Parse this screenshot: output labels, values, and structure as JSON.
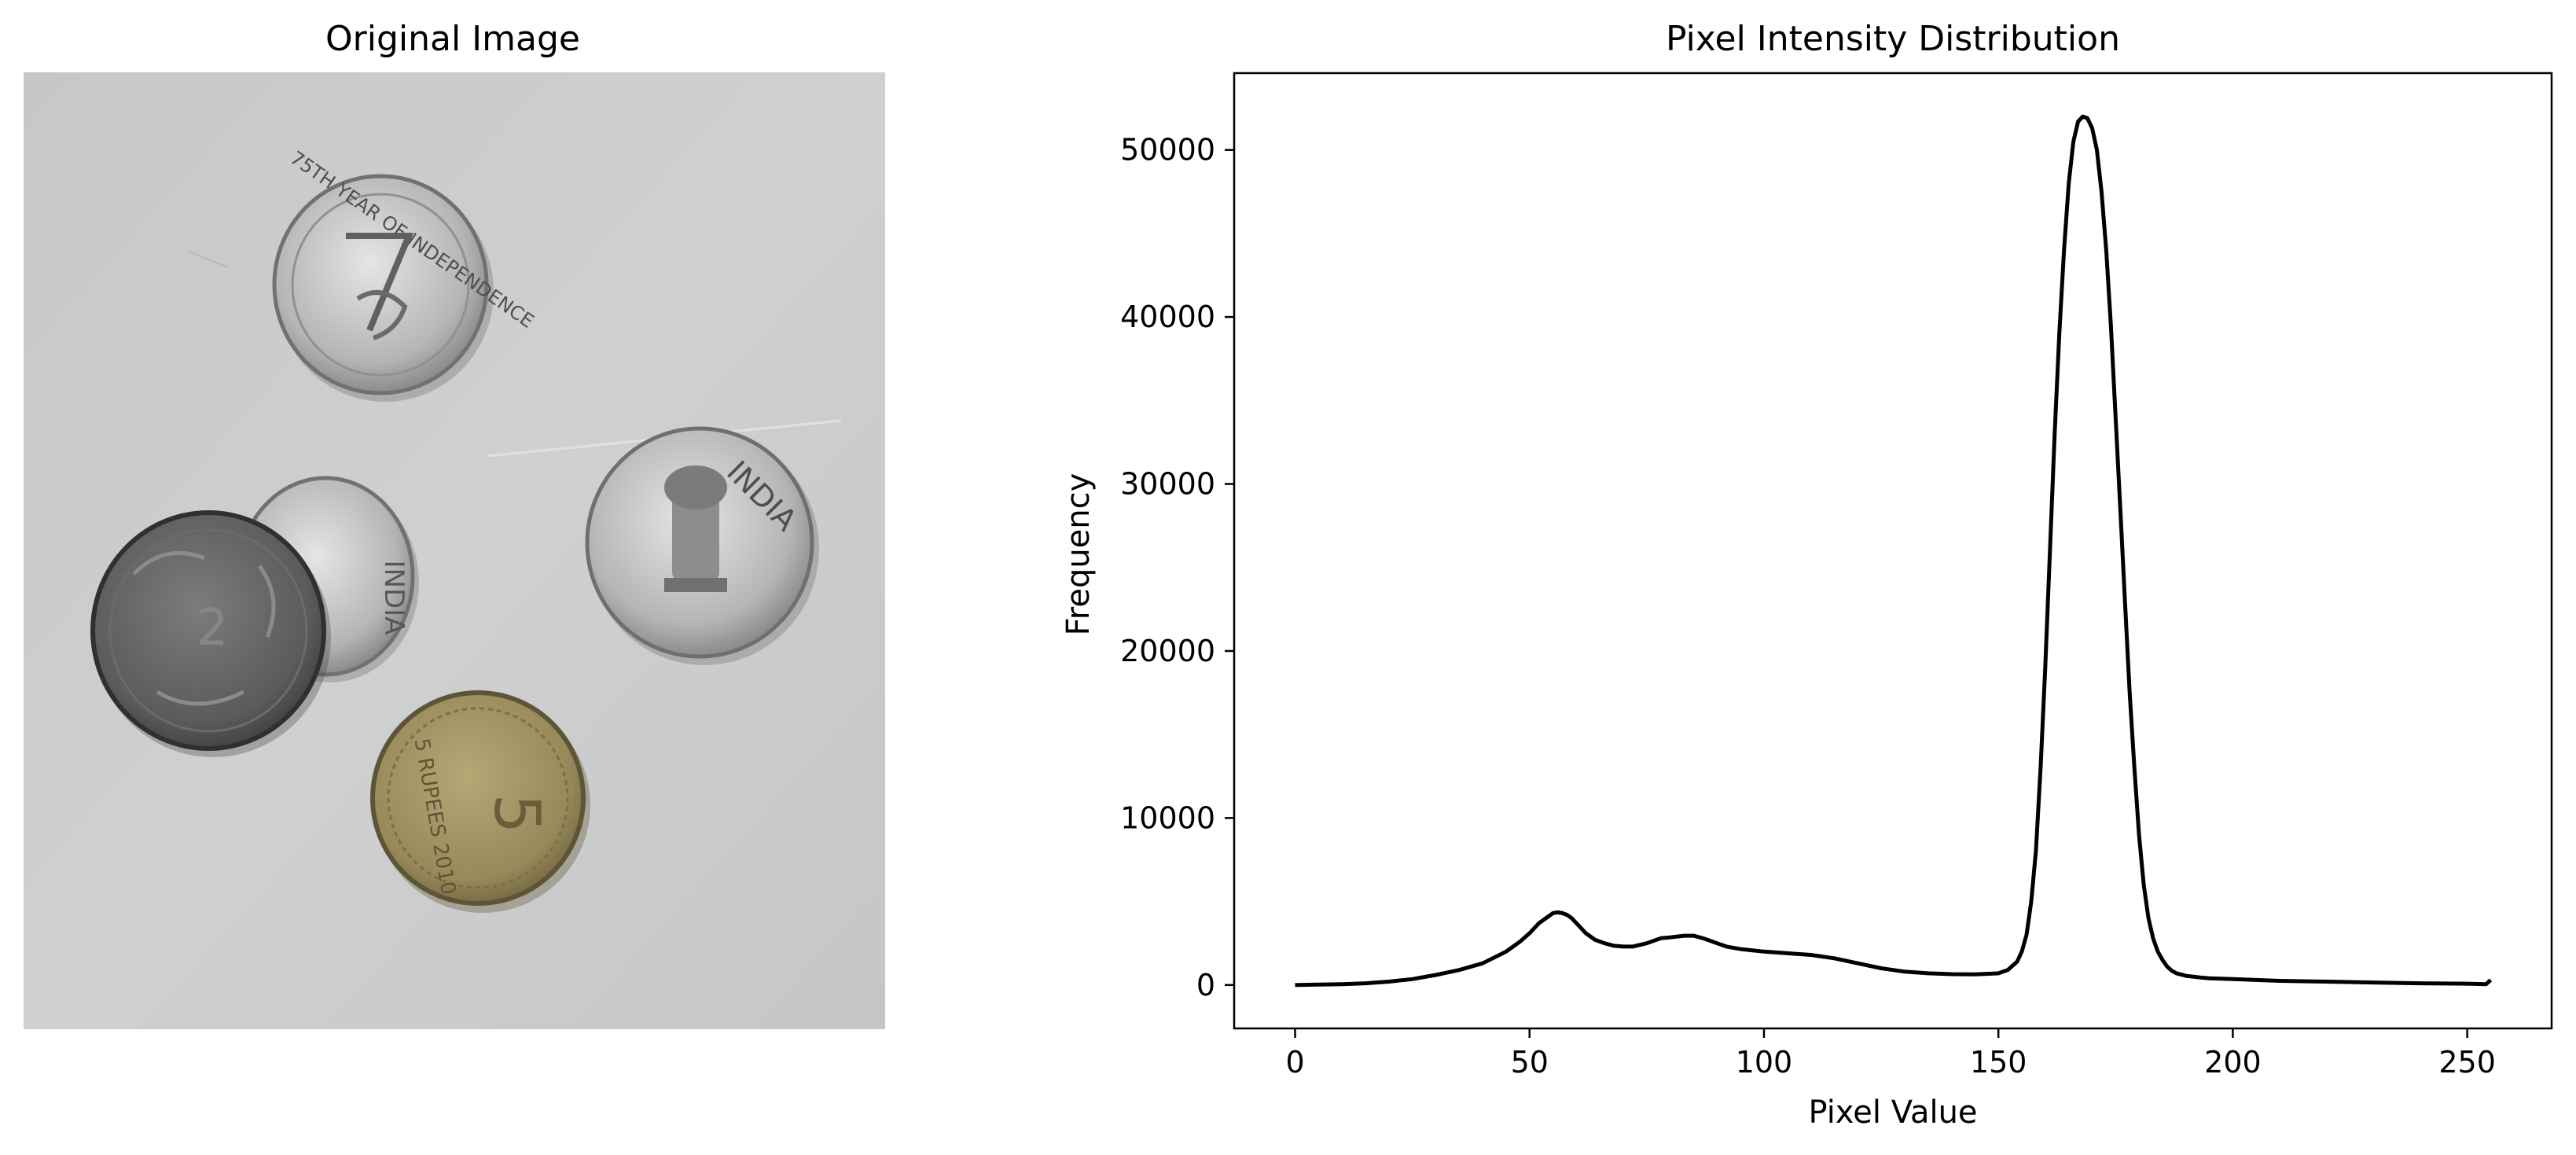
{
  "left_panel": {
    "title": "Original Image",
    "coins": [
      {
        "name": "coin-independence",
        "text": "75TH YEAR OF INDEPENDENCE"
      },
      {
        "name": "coin-india-small",
        "text": "INDIA"
      },
      {
        "name": "coin-dark",
        "text": "2"
      },
      {
        "name": "coin-emblem",
        "text": "INDIA"
      },
      {
        "name": "coin-gold",
        "text": "5 RUPEES 2010"
      }
    ]
  },
  "chart_data": {
    "type": "line",
    "title": "Pixel Intensity Distribution",
    "xlabel": "Pixel Value",
    "ylabel": "Frequency",
    "xlim": [
      -13,
      268
    ],
    "ylim": [
      -2600,
      54600
    ],
    "xticks": [
      0,
      50,
      100,
      150,
      200,
      250
    ],
    "yticks": [
      0,
      10000,
      20000,
      30000,
      40000,
      50000
    ],
    "grid": false,
    "series": [
      {
        "color": "#000000",
        "x": [
          0,
          5,
          10,
          15,
          20,
          25,
          30,
          35,
          40,
          45,
          48,
          50,
          52,
          54,
          55,
          56,
          57,
          58,
          59,
          60,
          61,
          62,
          63,
          64,
          65,
          66,
          68,
          70,
          72,
          75,
          78,
          80,
          83,
          85,
          87,
          88,
          90,
          92,
          95,
          100,
          105,
          110,
          115,
          120,
          125,
          130,
          135,
          140,
          145,
          150,
          152,
          154,
          155,
          156,
          157,
          158,
          159,
          160,
          161,
          162,
          163,
          164,
          165,
          166,
          167,
          168,
          169,
          170,
          171,
          172,
          173,
          174,
          175,
          176,
          177,
          178,
          179,
          180,
          181,
          182,
          183,
          184,
          185,
          186,
          187,
          188,
          190,
          193,
          195,
          200,
          210,
          220,
          230,
          240,
          250,
          254,
          255
        ],
        "y": [
          0,
          20,
          50,
          100,
          200,
          350,
          600,
          900,
          1300,
          2000,
          2600,
          3100,
          3700,
          4100,
          4300,
          4350,
          4300,
          4200,
          4000,
          3700,
          3400,
          3100,
          2900,
          2700,
          2600,
          2500,
          2350,
          2300,
          2300,
          2500,
          2800,
          2850,
          2950,
          2950,
          2800,
          2700,
          2500,
          2300,
          2150,
          2000,
          1900,
          1800,
          1600,
          1300,
          1000,
          800,
          700,
          650,
          640,
          700,
          900,
          1400,
          2000,
          3000,
          5000,
          8000,
          13000,
          19000,
          26000,
          33000,
          39000,
          44000,
          48000,
          50500,
          51700,
          52000,
          51900,
          51300,
          50000,
          47500,
          44000,
          39500,
          34000,
          28500,
          23000,
          17500,
          13000,
          9000,
          6000,
          4000,
          2800,
          2000,
          1500,
          1100,
          850,
          700,
          550,
          450,
          400,
          350,
          250,
          200,
          150,
          100,
          80,
          50,
          300
        ]
      }
    ]
  }
}
